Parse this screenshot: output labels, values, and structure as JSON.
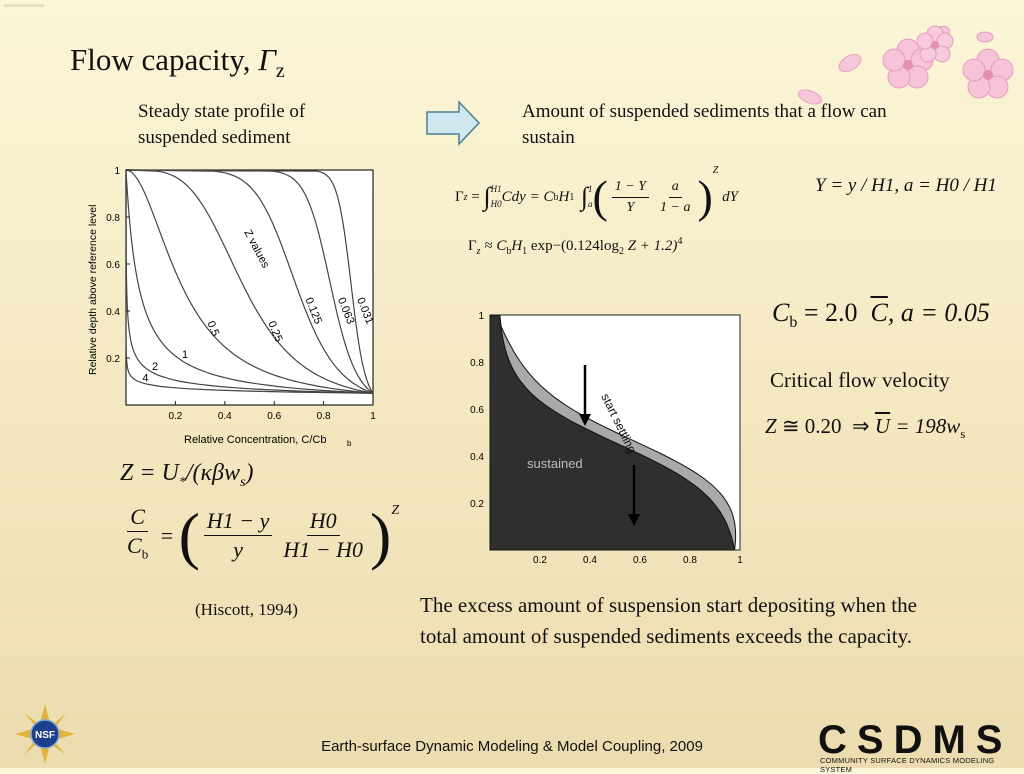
{
  "title": {
    "text": "Flow capacity, ",
    "symbol": "Γ",
    "subscript": "z"
  },
  "left_caption": "Steady state profile of suspended sediment",
  "right_caption": "Amount of suspended sediments that a flow can sustain",
  "eq_gamma": {
    "lhs": "Γ",
    "sub": "z",
    "int1_upper": "H1",
    "int1_lower": "H0",
    "int1_body": "Cdy = C",
    "cb_sub": "b",
    "h1": "H",
    "h1_sub": "1",
    "int2_upper": "1",
    "int2_lower": "a",
    "num1": "1 − Y",
    "den1": "Y",
    "num2": "a",
    "den2": "1 − a",
    "exp": "Z",
    "tail": "dY"
  },
  "eq_defs": "Y = y / H1,  a = H0 / H1",
  "eq_approx": {
    "lhs": "Γ",
    "sub": "z",
    "op": "≈",
    "body": "C",
    "cb_sub": "b",
    "h": "H",
    "h_sub": "1",
    "exp_word": "exp",
    "inner": "−(0.124log",
    "log_sub": "2",
    "inner2": "Z + 1.2)",
    "power": "4"
  },
  "eq_cb": {
    "lhs": "C",
    "sub": "b",
    "rhs": "= 2.0",
    "cbar": "C",
    "a_part": ",  a = 0.05"
  },
  "critical_label": "Critical flow velocity",
  "eq_crit": {
    "z": "Z",
    "approx": "≅ 0.20",
    "arrow": "⇒",
    "ubar": "U",
    "rhs": "= 198w",
    "ws_sub": "s"
  },
  "eq_z": {
    "lhs": "Z = U",
    "star": "*",
    "slash": "/(κβw",
    "ws_sub": "s",
    "close": ")"
  },
  "eq_ratio": {
    "c": "C",
    "cb": "C",
    "cb_sub": "b",
    "num1": "H1 − y",
    "den1": "y",
    "num2": "H0",
    "den2": "H1 − H0",
    "exp": "Z"
  },
  "citation": "(Hiscott, 1994)",
  "bottom_text": "The excess amount of suspension start depositing when the total amount of suspended sediments exceeds the capacity.",
  "footer": "Earth-surface Dynamic Modeling & Model Coupling, 2009",
  "logo_text": "CSDMS",
  "logo_sub": "COMMUNITY SURFACE DYNAMICS MODELING SYSTEM",
  "nsf_text": "NSF",
  "chart_data": [
    {
      "type": "line",
      "xlabel": "Relative Concentration, C/Cb",
      "ylabel": "Relative depth above reference level",
      "xlim": [
        0,
        1
      ],
      "ylim": [
        0,
        1
      ],
      "xticks": [
        "0.2",
        "0.4",
        "0.6",
        "0.8",
        "1"
      ],
      "yticks": [
        "0.2",
        "0.4",
        "0.6",
        "0.8",
        "1"
      ],
      "annotation": "Z values",
      "series_labels": [
        "0.031",
        "0.063",
        "0.125",
        "0.25",
        "0.5",
        "1",
        "2",
        "4"
      ],
      "z_values": [
        0.031,
        0.063,
        0.125,
        0.25,
        0.5,
        1,
        2,
        4
      ],
      "a": 0.05
    },
    {
      "type": "area",
      "xlim": [
        0,
        1
      ],
      "ylim": [
        0,
        1
      ],
      "xticks": [
        "0.2",
        "0.4",
        "0.6",
        "0.8",
        "1"
      ],
      "yticks": [
        "0.2",
        "0.4",
        "0.6",
        "0.8",
        "1"
      ],
      "region_labels": [
        "sustained",
        "start settling"
      ],
      "colors": {
        "sustained": "#2f2f2f",
        "settling": "#a9a9a9"
      }
    }
  ]
}
